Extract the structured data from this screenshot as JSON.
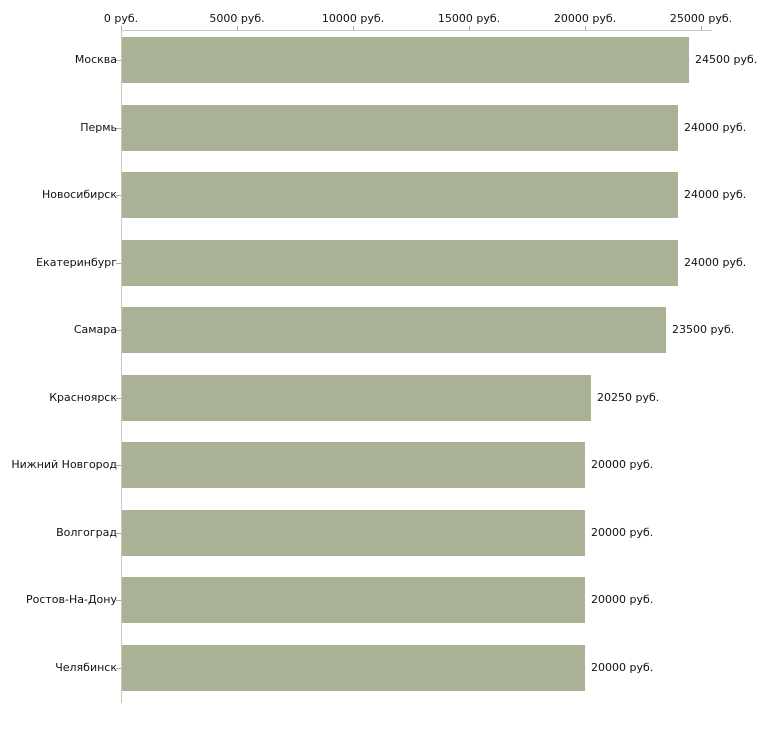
{
  "chart_data": {
    "type": "bar",
    "orientation": "horizontal",
    "title": "",
    "unit": "руб.",
    "categories": [
      "Москва",
      "Пермь",
      "Новосибирск",
      "Екатеринбург",
      "Самара",
      "Красноярск",
      "Нижний Новгород",
      "Волгоград",
      "Ростов-На-Дону",
      "Челябинск"
    ],
    "values": [
      24500,
      24000,
      24000,
      24000,
      23500,
      20250,
      20000,
      20000,
      20000,
      20000
    ],
    "value_labels": [
      "24500 руб.",
      "24000 руб.",
      "24000 руб.",
      "24000 руб.",
      "23500 руб.",
      "20250 руб.",
      "20000 руб.",
      "20000 руб.",
      "20000 руб.",
      "20000 руб."
    ],
    "x_axis": {
      "position": "top",
      "min": 0,
      "max": 25000,
      "tick_values": [
        0,
        5000,
        10000,
        15000,
        20000,
        25000
      ],
      "tick_labels": [
        "0 руб.",
        "5000 руб.",
        "10000 руб.",
        "15000 руб.",
        "20000 руб.",
        "25000 руб."
      ]
    },
    "grid": false,
    "legend": false,
    "colors": {
      "bar_fill": "#aab296",
      "axis_line": "#c9c9c0",
      "tick_mark": "#b3b382",
      "text": "#111111",
      "background": "#ffffff"
    }
  }
}
